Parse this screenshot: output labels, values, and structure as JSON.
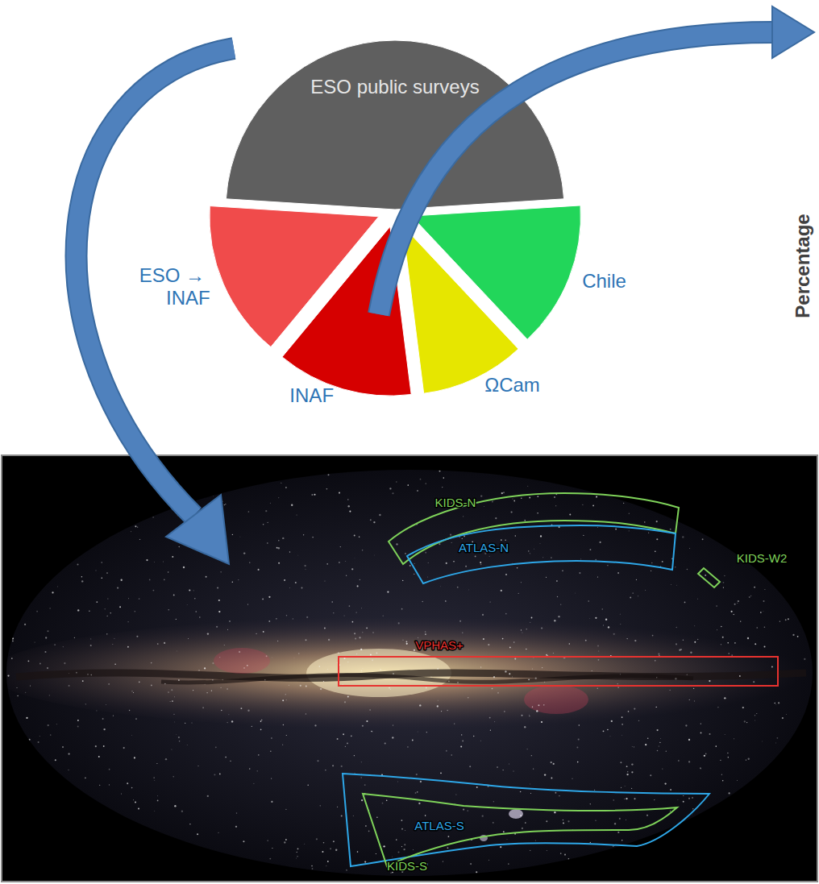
{
  "chart_data": {
    "type": "pie",
    "categories": [
      "ESO public surveys",
      "Chile",
      "ΩCam",
      "INAF",
      "ESO → INAF"
    ],
    "values": [
      48,
      14,
      10,
      13,
      15
    ],
    "colors": [
      "#5f5f5f",
      "#22d65a",
      "#e6e600",
      "#d60000",
      "#f04b4b"
    ]
  },
  "side_label": "Percentage",
  "sky_map": {
    "footprints": [
      {
        "label": "KIDS-N",
        "color": "#7fd35a"
      },
      {
        "label": "ATLAS-N",
        "color": "#2ea7e8"
      },
      {
        "label": "KIDS-W2",
        "color": "#7fd35a"
      },
      {
        "label": "VPHAS+",
        "color": "#e8322f"
      },
      {
        "label": "ATLAS-S",
        "color": "#2ea7e8"
      },
      {
        "label": "KIDS-S",
        "color": "#7fd35a"
      }
    ]
  }
}
